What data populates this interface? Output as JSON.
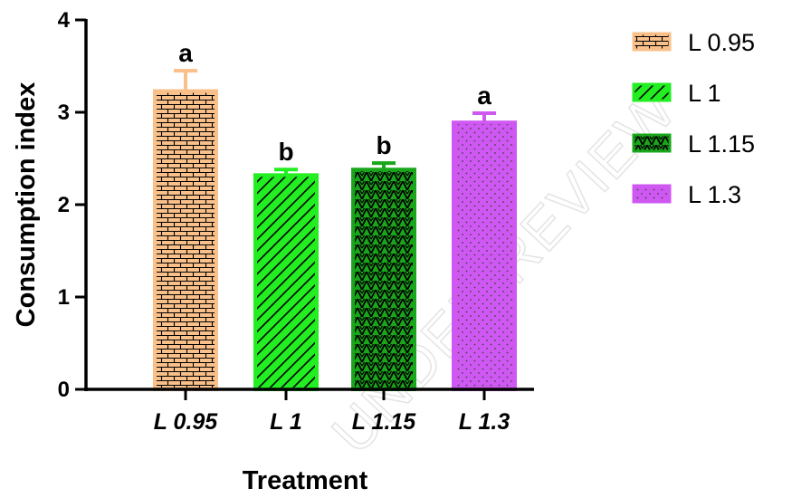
{
  "watermark": "UNDER REVIEW",
  "chart_data": {
    "type": "bar",
    "title": "",
    "xlabel": "Treatment",
    "ylabel": "Consumption index",
    "ylim": [
      0,
      4
    ],
    "yticks": [
      0,
      1,
      2,
      3,
      4
    ],
    "categories": [
      "L 0.95",
      "L 1",
      "L 1.15",
      "L 1.3"
    ],
    "values": [
      3.23,
      2.32,
      2.38,
      2.89
    ],
    "errors": [
      0.22,
      0.06,
      0.07,
      0.1
    ],
    "significance_letters": [
      "a",
      "b",
      "b",
      "a"
    ],
    "grid": false,
    "legend": {
      "placement": "right",
      "entries": [
        "L 0.95",
        "L 1",
        "L 1.15",
        "L 1.3"
      ]
    },
    "colors": {
      "L 0.95": {
        "fill": "#f9c08a",
        "pattern": "brick",
        "ink": "#000000"
      },
      "L 1": {
        "fill": "#22ee22",
        "pattern": "diagonal-hatch",
        "ink": "#000000"
      },
      "L 1.15": {
        "fill": "#1aa61a",
        "pattern": "zigzag",
        "ink": "#000000"
      },
      "L 1.3": {
        "fill": "#cf58f2",
        "pattern": "dots",
        "ink": "#555555"
      }
    },
    "axis_color": "#000000"
  }
}
